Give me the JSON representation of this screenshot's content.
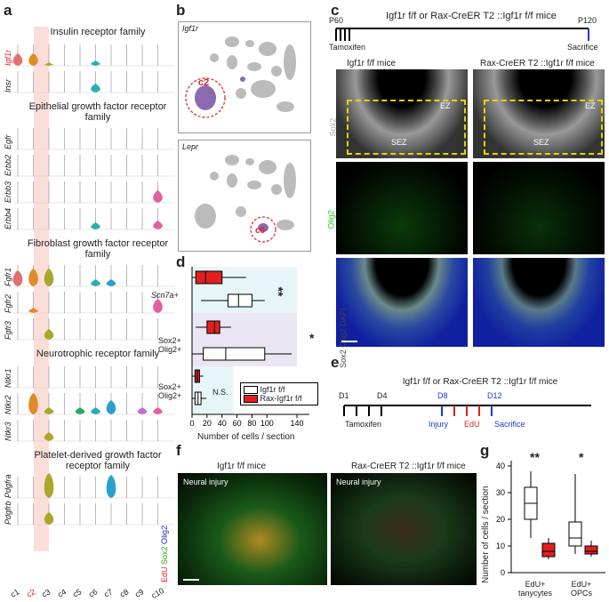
{
  "panel_labels": {
    "a": "a",
    "b": "b",
    "c": "c",
    "d": "d",
    "e": "e",
    "f": "f",
    "g": "g"
  },
  "panel_a": {
    "families": [
      {
        "title": "Insulin receptor family",
        "genes": [
          "Igf1r",
          "Insr"
        ]
      },
      {
        "title": "Epithelial growth factor receptor family",
        "genes": [
          "Egfr",
          "Erbb2",
          "Erbb3",
          "Erbb4"
        ]
      },
      {
        "title": "Fibroblast growth factor receptor family",
        "genes": [
          "Fgfr1",
          "Fgfr2",
          "Fgfr3"
        ]
      },
      {
        "title": "Neurotrophic receptor family",
        "genes": [
          "Ntkr1",
          "Ntkr2",
          "Ntkr3"
        ]
      },
      {
        "title": "Platelet-derived growth factor receptor family",
        "genes": [
          "Pdgfra",
          "Pdgfrb"
        ]
      }
    ],
    "clusters": [
      "c1",
      "c2",
      "c3",
      "c4",
      "c5",
      "c6",
      "c7",
      "c8",
      "c9",
      "c10"
    ],
    "highlight_cluster": "c2",
    "highlight_gene": "Igf1r",
    "colors": [
      "#e07070",
      "#e08a2a",
      "#a8a82a",
      "#7a9a2a",
      "#2aaa6a",
      "#2ab0b0",
      "#2aa0d0",
      "#7a8ad0",
      "#c070d0",
      "#e060a0"
    ]
  },
  "panel_b": {
    "genes": [
      "Igf1r",
      "Lepr"
    ],
    "clusters": [
      "c2",
      "c6"
    ]
  },
  "panel_c": {
    "timeline_title": "Igf1r f/f or Rax-CreER T2 ::Igf1r f/f mice",
    "start": "P60",
    "start_label": "Tamoxifen",
    "end": "P120",
    "end_label": "Sacrifice",
    "col_headers": [
      "Igf1r f/f mice",
      "Rax-CreER T2 ::Igf1r f/f mice"
    ],
    "row_labels": [
      "Sox2",
      "Olig2",
      "Sox2 Olig2 DAPI"
    ],
    "region_labels": [
      "EZ",
      "SEZ"
    ]
  },
  "panel_d": {
    "chart_data": {
      "type": "box",
      "xlabel": "Number of cells / section",
      "xticks": [
        0,
        20,
        40,
        60,
        80,
        100,
        140
      ],
      "groups": [
        {
          "label": "Scn7a+",
          "control": {
            "min": 12,
            "q1": 48,
            "median": 62,
            "q3": 80,
            "max": 97
          },
          "ko": {
            "min": 0,
            "q1": 5,
            "median": 18,
            "q3": 40,
            "max": 72
          },
          "sig": "**"
        },
        {
          "label": "Sox2+ Olig2+",
          "control": {
            "min": 0,
            "q1": 15,
            "median": 45,
            "q3": 97,
            "max": 133
          },
          "ko": {
            "min": 5,
            "q1": 20,
            "median": 30,
            "q3": 37,
            "max": 52
          },
          "sig": "*"
        },
        {
          "label": "Sox2+ Olig2+",
          "control": {
            "min": 0,
            "q1": 4,
            "median": 8,
            "q3": 12,
            "max": 19
          },
          "ko": {
            "min": 0,
            "q1": 4,
            "median": 7,
            "q3": 10,
            "max": 15
          },
          "sig": "N.S."
        }
      ],
      "legend": [
        "Igf1r f/f",
        "Rax-Igf1r f/f"
      ],
      "colors": {
        "control": "#ffffff",
        "ko": "#e02020"
      }
    }
  },
  "panel_e": {
    "title": "Igf1r f/f or Rax-CreER T2 ::Igf1r f/f mice",
    "days": [
      "D1",
      "D4",
      "D8",
      "D12"
    ],
    "labels": [
      "Tamoxifen",
      "Injury",
      "EdU",
      "Sacrifice"
    ]
  },
  "panel_f": {
    "col_headers": [
      "Igf1r f/f mice",
      "Rax-CreER T2 ::Igf1r f/f mice"
    ],
    "inset": "Neural injury",
    "side_label": [
      "EdU",
      "Sox2",
      "Olig2"
    ]
  },
  "panel_g": {
    "chart_data": {
      "type": "box",
      "ylabel": "Number of cells / section",
      "yticks": [
        0,
        10,
        20,
        30,
        40
      ],
      "categories": [
        "EdU+ tanycytes",
        "EdU+ OPCs"
      ],
      "series": [
        {
          "name": "Igf1r f/f",
          "values": [
            {
              "min": 13,
              "q1": 20,
              "median": 26,
              "q3": 32,
              "max": 38
            },
            {
              "min": 7,
              "q1": 10,
              "median": 13,
              "q3": 19,
              "max": 37
            }
          ]
        },
        {
          "name": "Rax-Igf1r f/f",
          "values": [
            {
              "min": 5,
              "q1": 6,
              "median": 8,
              "q3": 11,
              "max": 13
            },
            {
              "min": 6,
              "q1": 7,
              "median": 8,
              "q3": 10,
              "max": 12
            }
          ]
        }
      ],
      "sig": [
        "**",
        "*"
      ]
    }
  }
}
